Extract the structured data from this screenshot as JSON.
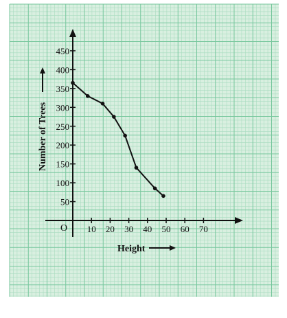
{
  "chart_data": {
    "type": "line",
    "xlabel": "Height",
    "ylabel": "Number of Trees",
    "origin_label": "O",
    "xlim": [
      0,
      70
    ],
    "ylim": [
      0,
      450
    ],
    "x_ticks": [
      "10",
      "20",
      "30",
      "40",
      "50",
      "60",
      "70"
    ],
    "y_ticks": [
      "50",
      "100",
      "150",
      "200",
      "250",
      "300",
      "350",
      "400",
      "450"
    ],
    "grid": true,
    "colors": {
      "paper": "#d9efe0",
      "grid_minor": "#a9dcc0",
      "grid_major": "#77c79d",
      "line": "#111111"
    },
    "series": [
      {
        "x": [
          0,
          8,
          16,
          22,
          28,
          34,
          44,
          48.5
        ],
        "y": [
          365,
          330,
          310,
          275,
          225,
          140,
          85,
          65
        ]
      }
    ]
  }
}
